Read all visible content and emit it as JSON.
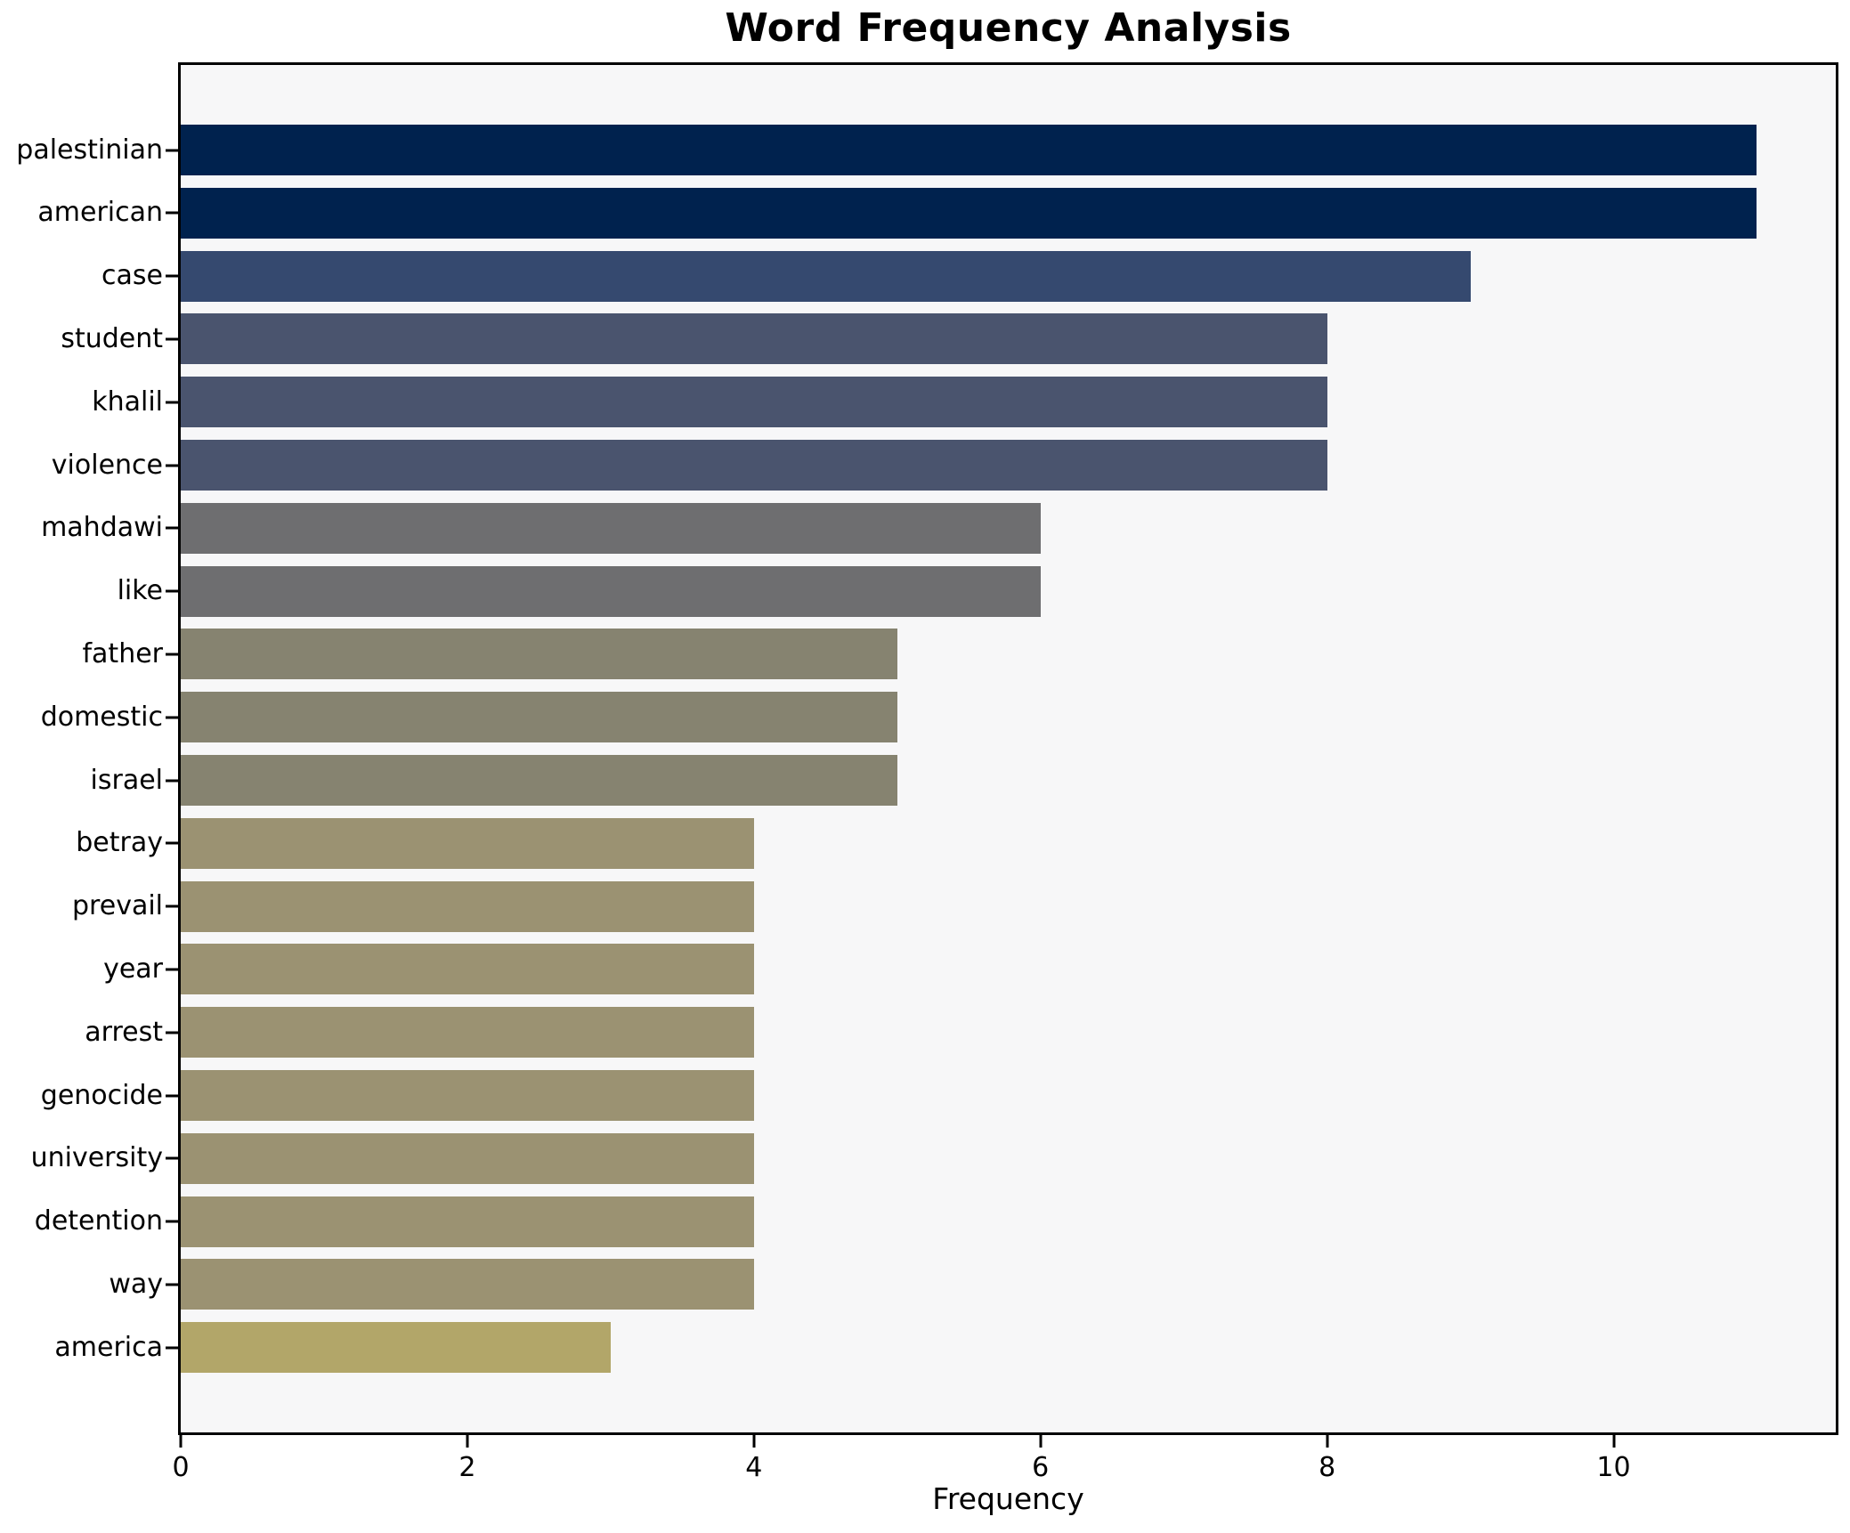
{
  "chart_data": {
    "type": "bar",
    "orientation": "horizontal",
    "title": "Word Frequency Analysis",
    "xlabel": "Frequency",
    "ylabel": "",
    "grid": false,
    "legend": "none",
    "xlim": [
      0,
      11.55
    ],
    "xticks": [
      0,
      2,
      4,
      6,
      8,
      10
    ],
    "categories": [
      "palestinian",
      "american",
      "case",
      "student",
      "khalil",
      "violence",
      "mahdawi",
      "like",
      "father",
      "domestic",
      "israel",
      "betray",
      "prevail",
      "year",
      "arrest",
      "genocide",
      "university",
      "detention",
      "way",
      "america"
    ],
    "values": [
      11,
      11,
      9,
      8,
      8,
      8,
      6,
      6,
      5,
      5,
      5,
      4,
      4,
      4,
      4,
      4,
      4,
      4,
      4,
      3
    ],
    "bar_colors": [
      "#00224e",
      "#00224e",
      "#35496f",
      "#4a546e",
      "#4a546e",
      "#4a546e",
      "#6e6e70",
      "#6e6e70",
      "#868370",
      "#868370",
      "#868370",
      "#9b9272",
      "#9b9272",
      "#9b9272",
      "#9b9272",
      "#9b9272",
      "#9b9272",
      "#9b9272",
      "#9b9272",
      "#b2a669"
    ],
    "colors": {
      "plot_background": "#f7f7f8",
      "figure_background": "#ffffff",
      "spine": "#000000",
      "text": "#000000"
    }
  }
}
